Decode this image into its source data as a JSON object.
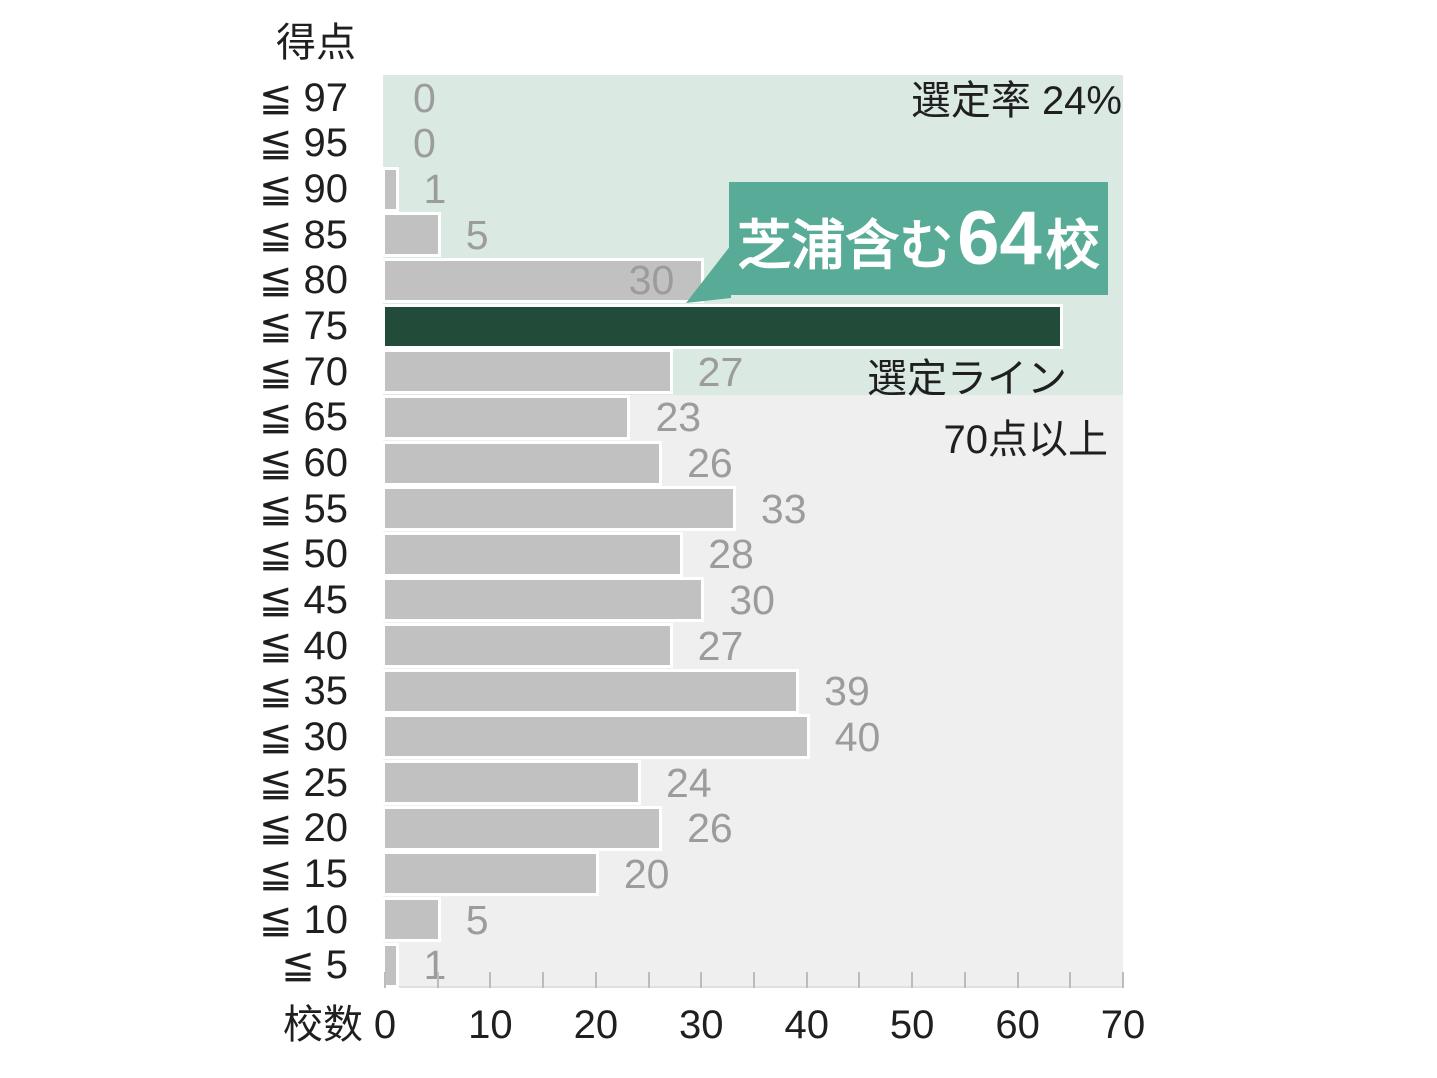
{
  "title": "得点",
  "x_axis_label": "校数",
  "chart_data": {
    "type": "bar",
    "orientation": "horizontal",
    "title": "得点",
    "xlabel": "校数",
    "categories": [
      "≦ 97",
      "≦ 95",
      "≦ 90",
      "≦ 85",
      "≦ 80",
      "≦ 75",
      "≦ 70",
      "≦ 65",
      "≦ 60",
      "≦ 55",
      "≦ 50",
      "≦ 45",
      "≦ 40",
      "≦ 35",
      "≦ 30",
      "≦ 25",
      "≦ 20",
      "≦ 15",
      "≦ 10",
      "≦ 5"
    ],
    "values": [
      0,
      0,
      1,
      5,
      30,
      64,
      27,
      23,
      26,
      33,
      28,
      30,
      27,
      39,
      40,
      24,
      26,
      20,
      5,
      1
    ],
    "xlim": [
      0,
      70
    ],
    "x_tick_labels": [
      "0",
      "10",
      "20",
      "30",
      "40",
      "50",
      "60",
      "70"
    ],
    "x_tick_step_labeled": 10,
    "x_tick_step_minor": 5,
    "highlight_index": 5,
    "inside_value_label_index": 4,
    "hidden_value_label_index": 5,
    "upper_band_rows": 7,
    "grid": false,
    "legend": false
  },
  "annotations": {
    "selection_rate": "選定率 24%",
    "callout_prefix": "芝浦含む ",
    "callout_value": "64",
    "callout_suffix": "校",
    "selection_line_title": "選定ライン",
    "selection_line_threshold": "70点以上"
  },
  "colors": {
    "bar": "#c1c1c1",
    "bar_highlight": "#224b39",
    "callout": "#58ab96",
    "callout_text": "#ffffff",
    "upper_band": "#dbe9e3",
    "lower_band": "#efefef",
    "value_label": "#9c9c9c",
    "text": "#1f1f1f",
    "tick": "#bcbcbc"
  }
}
